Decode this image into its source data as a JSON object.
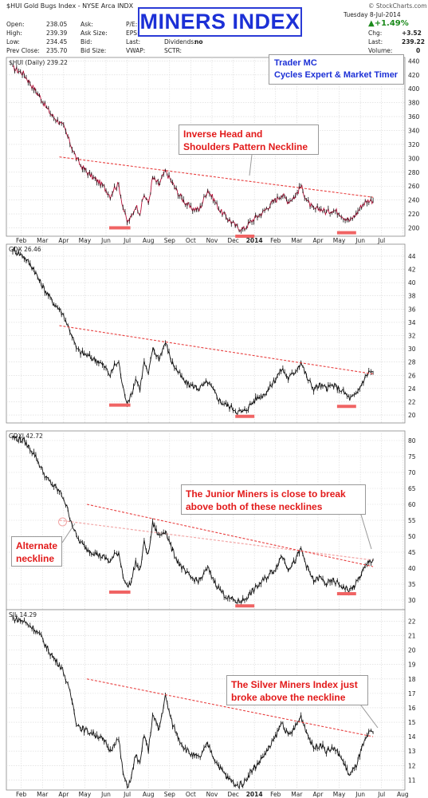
{
  "header": {
    "symbol": "$HUI Gold Bugs Index - NYSE Arca INDX",
    "source": "© StockCharts.com",
    "date": "Tuesday  8-Jul-2014",
    "change_pct": "▲+1.49%",
    "quote_left": [
      {
        "label": "Open:",
        "value": "238.05"
      },
      {
        "label": "High:",
        "value": "239.39"
      },
      {
        "label": "Low:",
        "value": "234.45"
      },
      {
        "label": "Prev Close:",
        "value": "235.70"
      }
    ],
    "quote_mid": [
      {
        "label": "Ask:",
        "value": ""
      },
      {
        "label": "Ask Size:",
        "value": ""
      },
      {
        "label": "Bid:",
        "value": ""
      },
      {
        "label": "Bid Size:",
        "value": ""
      }
    ],
    "quote_mid2": [
      {
        "label": "P/E:",
        "value": ""
      },
      {
        "label": "EPS:",
        "value": ""
      },
      {
        "label": "Last:",
        "value": ""
      },
      {
        "label": "VWAP:",
        "value": ""
      }
    ],
    "quote_mid3": [
      {
        "label": "Dividends:",
        "value": "no"
      },
      {
        "label": "SCTR:",
        "value": ""
      }
    ],
    "quote_right": [
      {
        "label": "Chg:",
        "value": "+3.52"
      },
      {
        "label": "Last:",
        "value": "239.22"
      },
      {
        "label": "Volume:",
        "value": "0"
      }
    ]
  },
  "title": "MINERS INDEX",
  "trader": {
    "line1": "Trader MC",
    "line2": "Cycles Expert & Market Timer"
  },
  "colors": {
    "price": "#111111",
    "hui_price": "#b8123a",
    "neckline": "#e84040",
    "bottom": "#f06464",
    "alt_neckline": "#f2a6a6",
    "grid": "#d8d8d8",
    "title": "#1c30d6",
    "annotation": "#e21a1a"
  },
  "chart_data": [
    {
      "type": "line",
      "panel_label": "$HUI (Daily) 239.22",
      "y_ticks": [
        200,
        220,
        240,
        260,
        280,
        300,
        320,
        340,
        360,
        380,
        400,
        420,
        440
      ],
      "ylim": [
        188,
        445
      ],
      "x_labels": [
        "Feb",
        "Mar",
        "Apr",
        "May",
        "Jun",
        "Jul",
        "Aug",
        "Sep",
        "Oct",
        "Nov",
        "Dec",
        "2014",
        "Feb",
        "Mar",
        "Apr",
        "May",
        "Jun",
        "Jul"
      ],
      "series": [
        {
          "x": [
            0,
            0.5,
            1,
            1.3,
            1.6,
            1.9,
            2.2,
            2.4,
            2.6,
            2.8,
            3.0,
            3.2,
            3.5,
            3.8,
            4.1,
            4.4,
            4.6,
            4.8,
            5.0,
            5.2,
            5.4,
            5.6,
            5.8,
            6.0,
            6.2,
            6.4,
            6.6,
            6.9,
            7.2,
            7.5,
            7.8,
            8.1,
            8.4,
            8.8,
            9.2,
            9.5,
            9.8,
            10.1,
            10.4,
            10.6,
            10.9,
            11.2,
            11.5,
            11.8,
            12.1,
            12.4,
            12.7,
            13.0,
            13.3,
            13.6,
            13.9,
            14.2,
            14.5,
            14.8,
            15.1,
            15.4,
            15.6,
            15.9,
            16.2,
            16.5,
            16.8,
            17.0
          ],
          "values": [
            430,
            422,
            400,
            388,
            372,
            360,
            352,
            345,
            330,
            315,
            300,
            290,
            280,
            272,
            265,
            255,
            246,
            258,
            262,
            230,
            208,
            215,
            232,
            222,
            248,
            235,
            272,
            262,
            282,
            266,
            250,
            238,
            228,
            226,
            255,
            240,
            224,
            215,
            206,
            200,
            198,
            208,
            216,
            222,
            232,
            240,
            248,
            238,
            245,
            260,
            238,
            226,
            228,
            222,
            226,
            222,
            216,
            210,
            220,
            234,
            240,
            239
          ]
        }
      ],
      "neckline": {
        "x": [
          2.2,
          17.0
        ],
        "values": [
          302,
          244
        ]
      },
      "bottoms": [
        {
          "x": [
            4.55,
            5.55
          ],
          "value": 200
        },
        {
          "x": [
            10.5,
            11.4
          ],
          "value": 188
        },
        {
          "x": [
            15.3,
            16.2
          ],
          "value": 193
        }
      ],
      "annotation": {
        "line1": "Inverse Head and",
        "line2": "Shoulders Pattern Neckline"
      }
    },
    {
      "type": "line",
      "panel_label": "GDX 26.46",
      "y_ticks": [
        20,
        22,
        24,
        26,
        28,
        30,
        32,
        34,
        36,
        38,
        40,
        42,
        44
      ],
      "ylim": [
        18.8,
        45.8
      ],
      "x_labels": [],
      "series": [
        {
          "x": [
            0,
            0.5,
            1,
            1.3,
            1.6,
            1.9,
            2.2,
            2.4,
            2.6,
            2.8,
            3.0,
            3.2,
            3.5,
            3.8,
            4.1,
            4.4,
            4.6,
            4.8,
            5.0,
            5.2,
            5.4,
            5.6,
            5.8,
            6.0,
            6.2,
            6.4,
            6.6,
            6.9,
            7.2,
            7.5,
            7.8,
            8.1,
            8.4,
            8.8,
            9.2,
            9.5,
            9.8,
            10.1,
            10.4,
            10.6,
            10.9,
            11.2,
            11.5,
            11.8,
            12.1,
            12.4,
            12.7,
            13.0,
            13.3,
            13.6,
            13.9,
            14.2,
            14.5,
            14.8,
            15.1,
            15.4,
            15.6,
            15.9,
            16.2,
            16.5,
            16.8,
            17.0
          ],
          "values": [
            45,
            44,
            42,
            40,
            38.5,
            37,
            36,
            35,
            33.5,
            32,
            30,
            29.5,
            29,
            28.5,
            28,
            27,
            26,
            27.5,
            28,
            24,
            22,
            23,
            25.5,
            24,
            28,
            26,
            30,
            28.5,
            31,
            28,
            26.5,
            25,
            24.5,
            24,
            25,
            23.5,
            22,
            21.5,
            21,
            20.5,
            20.5,
            21.5,
            22.5,
            23,
            24,
            25.5,
            27,
            25.5,
            26.5,
            28,
            25.5,
            24,
            24.5,
            24,
            24.5,
            24,
            23.5,
            22.5,
            23,
            25,
            26.5,
            26.5
          ]
        }
      ],
      "neckline": {
        "x": [
          2.2,
          17.0
        ],
        "values": [
          33.5,
          26.2
        ]
      },
      "bottoms": [
        {
          "x": [
            4.55,
            5.55
          ],
          "value": 21.5
        },
        {
          "x": [
            10.5,
            11.4
          ],
          "value": 19.8
        },
        {
          "x": [
            15.3,
            16.2
          ],
          "value": 21.3
        }
      ],
      "annotation": null
    },
    {
      "type": "line",
      "panel_label": "GDXJ 42.72",
      "y_ticks": [
        30,
        35,
        40,
        45,
        50,
        55,
        60,
        65,
        70,
        75,
        80
      ],
      "ylim": [
        27,
        83
      ],
      "x_labels": [],
      "series": [
        {
          "x": [
            0,
            0.5,
            1,
            1.3,
            1.6,
            1.9,
            2.2,
            2.4,
            2.6,
            2.8,
            3.0,
            3.2,
            3.5,
            3.8,
            4.1,
            4.4,
            4.6,
            4.8,
            5.0,
            5.2,
            5.4,
            5.6,
            5.8,
            6.0,
            6.2,
            6.4,
            6.6,
            6.9,
            7.2,
            7.5,
            7.8,
            8.1,
            8.4,
            8.8,
            9.2,
            9.5,
            9.8,
            10.1,
            10.4,
            10.6,
            10.9,
            11.2,
            11.5,
            11.8,
            12.1,
            12.4,
            12.7,
            13.0,
            13.3,
            13.6,
            13.9,
            14.2,
            14.5,
            14.8,
            15.1,
            15.4,
            15.6,
            15.9,
            16.2,
            16.5,
            16.8,
            17.0
          ],
          "values": [
            81,
            80,
            76,
            72,
            68,
            66,
            64,
            62,
            58,
            54,
            50,
            48,
            46,
            45,
            44,
            43,
            42,
            44,
            45,
            38,
            34,
            36,
            42,
            39,
            48,
            44,
            54,
            50,
            52,
            46,
            42,
            39,
            37,
            36,
            40,
            36,
            33,
            31,
            30,
            29.5,
            30,
            32,
            34,
            36,
            38,
            40,
            44,
            40,
            42,
            46,
            40,
            36,
            37,
            35,
            36,
            35,
            34,
            33,
            35,
            39,
            42,
            42.7
          ]
        }
      ],
      "neckline": {
        "x": [
          3.5,
          17.0
        ],
        "values": [
          60,
          40.5
        ]
      },
      "alt_neckline": {
        "x": [
          2.2,
          17.0
        ],
        "values": [
          55,
          42.5
        ]
      },
      "bottoms": [
        {
          "x": [
            4.55,
            5.55
          ],
          "value": 32.5
        },
        {
          "x": [
            10.5,
            11.4
          ],
          "value": 28.2
        },
        {
          "x": [
            15.3,
            16.2
          ],
          "value": 32
        }
      ],
      "annotation": {
        "line1": "The Junior Miners is close to break",
        "line2": "above both of these necklines"
      },
      "annotation2": {
        "line1": "Alternate",
        "line2": "neckline"
      }
    },
    {
      "type": "line",
      "panel_label": "SIL 14.29",
      "y_ticks": [
        11,
        12,
        13,
        14,
        15,
        16,
        17,
        18,
        19,
        20,
        21,
        22
      ],
      "ylim": [
        10.3,
        22.8
      ],
      "x_labels": [
        "Feb",
        "Mar",
        "Apr",
        "May",
        "Jun",
        "Jul",
        "Aug",
        "Sep",
        "Oct",
        "Nov",
        "Dec",
        "2014",
        "Feb",
        "Mar",
        "Apr",
        "May",
        "Jun",
        "Jul",
        "Aug"
      ],
      "series": [
        {
          "x": [
            0,
            0.5,
            1,
            1.3,
            1.6,
            1.9,
            2.2,
            2.4,
            2.6,
            2.8,
            3.0,
            3.2,
            3.5,
            3.8,
            4.1,
            4.4,
            4.6,
            4.8,
            5.0,
            5.2,
            5.4,
            5.6,
            5.8,
            6.0,
            6.2,
            6.4,
            6.6,
            6.9,
            7.2,
            7.5,
            7.8,
            8.1,
            8.4,
            8.8,
            9.2,
            9.5,
            9.8,
            10.1,
            10.4,
            10.6,
            10.9,
            11.2,
            11.5,
            11.8,
            12.1,
            12.4,
            12.7,
            13.0,
            13.3,
            13.6,
            13.9,
            14.2,
            14.5,
            14.8,
            15.1,
            15.4,
            15.6,
            15.9,
            16.2,
            16.5,
            16.8,
            17.0
          ],
          "values": [
            22.2,
            22,
            21.5,
            21,
            20.2,
            19.5,
            19,
            18.5,
            17.5,
            16.5,
            15,
            14.6,
            14.4,
            14.2,
            14,
            13.5,
            13,
            13.6,
            13.8,
            11.5,
            10.5,
            11.2,
            12.8,
            12,
            14.2,
            13,
            15.5,
            14.5,
            16.8,
            15,
            14,
            13.2,
            12.8,
            12.5,
            13.5,
            12.5,
            11.8,
            11.2,
            10.8,
            10.6,
            10.8,
            11.5,
            12,
            12.6,
            13.2,
            14,
            15,
            14,
            14.6,
            15.4,
            14.2,
            13.2,
            13.5,
            13,
            13.2,
            12.8,
            12.2,
            11.3,
            12,
            13.3,
            14.2,
            14.29
          ]
        }
      ],
      "neckline": {
        "x": [
          3.5,
          17.0
        ],
        "values": [
          18,
          14
        ]
      },
      "bottoms": [],
      "annotation": {
        "line1": "The Silver Miners Index just",
        "line2": "broke above the neckline"
      }
    }
  ]
}
